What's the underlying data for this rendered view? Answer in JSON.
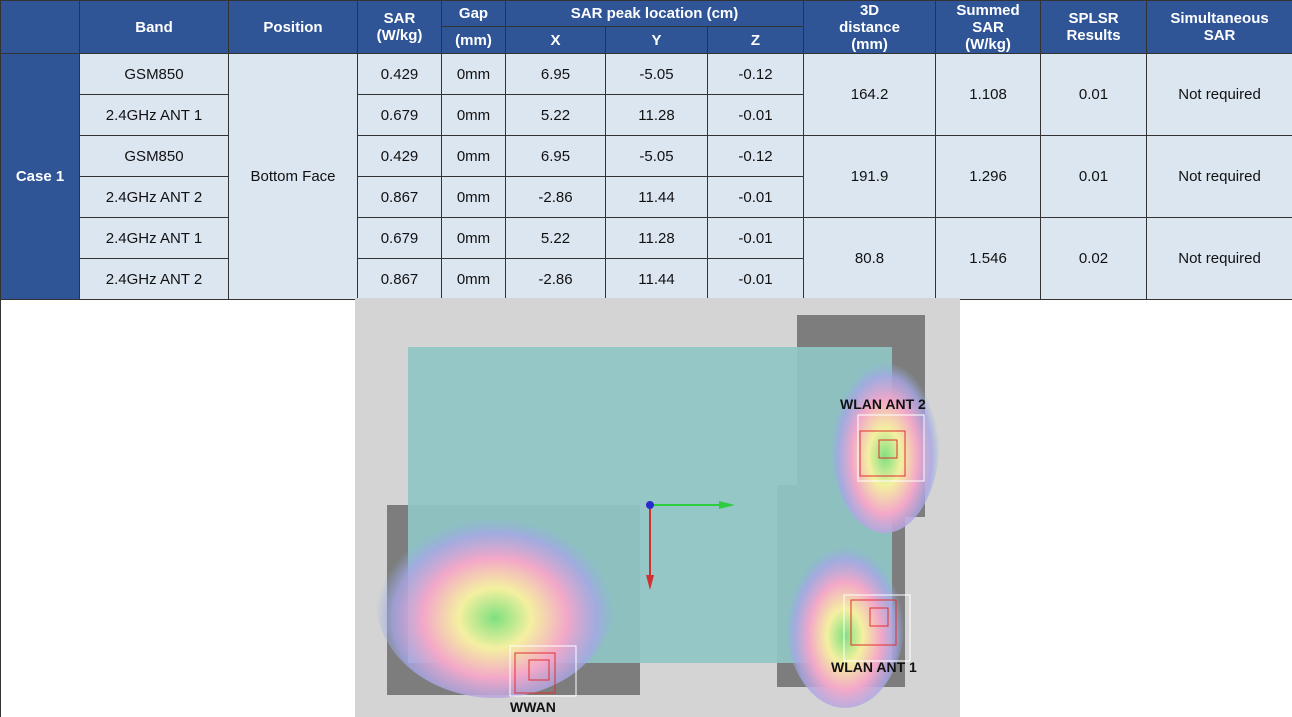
{
  "table": {
    "header": {
      "band": "Band",
      "position": "Position",
      "sar": [
        "SAR",
        "(W/kg)"
      ],
      "gap": "Gap",
      "gap_unit": "(mm)",
      "peak": "SAR peak location (cm)",
      "x": "X",
      "y": "Y",
      "z": "Z",
      "distance": [
        "3D",
        "distance",
        "(mm)"
      ],
      "summed": [
        "Summed",
        "SAR",
        "(W/kg)"
      ],
      "splsr": [
        "SPLSR",
        "Results"
      ],
      "simultaneous": [
        "Simultaneous",
        "SAR"
      ]
    },
    "case": "Case 1",
    "position": "Bottom Face",
    "rows": [
      {
        "band": "GSM850",
        "sar": "0.429",
        "gap": "0mm",
        "x": "6.95",
        "y": "-5.05",
        "z": "-0.12"
      },
      {
        "band": "2.4GHz ANT 1",
        "sar": "0.679",
        "gap": "0mm",
        "x": "5.22",
        "y": "11.28",
        "z": "-0.01"
      },
      {
        "band": "GSM850",
        "sar": "0.429",
        "gap": "0mm",
        "x": "6.95",
        "y": "-5.05",
        "z": "-0.12"
      },
      {
        "band": "2.4GHz ANT 2",
        "sar": "0.867",
        "gap": "0mm",
        "x": "-2.86",
        "y": "11.44",
        "z": "-0.01"
      },
      {
        "band": "2.4GHz ANT 1",
        "sar": "0.679",
        "gap": "0mm",
        "x": "5.22",
        "y": "11.28",
        "z": "-0.01"
      },
      {
        "band": "2.4GHz ANT 2",
        "sar": "0.867",
        "gap": "0mm",
        "x": "-2.86",
        "y": "11.44",
        "z": "-0.01"
      }
    ],
    "groups": [
      {
        "distance": "164.2",
        "summed": "1.108",
        "splsr": "0.01",
        "simultaneous": "Not required"
      },
      {
        "distance": "191.9",
        "summed": "1.296",
        "splsr": "0.01",
        "simultaneous": "Not required"
      },
      {
        "distance": "80.8",
        "summed": "1.546",
        "splsr": "0.02",
        "simultaneous": "Not required"
      }
    ]
  },
  "image": {
    "labels": {
      "wwan": "WWAN",
      "ant1": "WLAN ANT 1",
      "ant2": "WLAN ANT 2"
    }
  }
}
